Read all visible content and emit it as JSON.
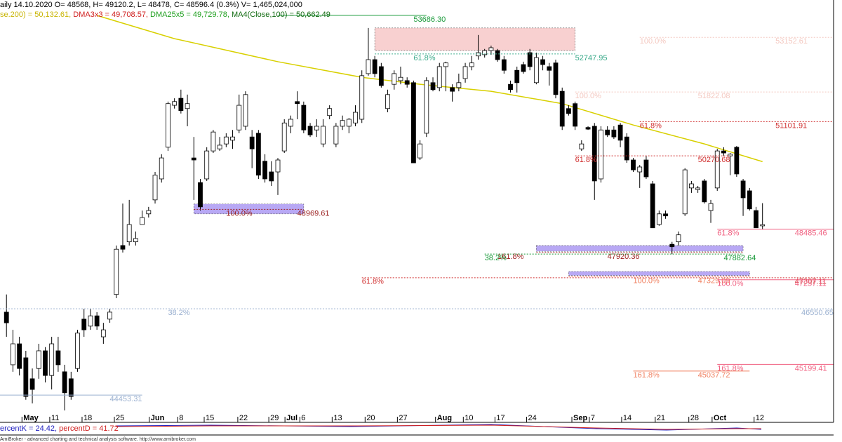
{
  "header": {
    "line1": "aily 14.10.2020 O= 48568, H= 49120.2, L= 48478, C= 48596.4 (0.3%) V= 1,465,024,000",
    "line2": [
      {
        "text": "se.200) = 50,132.61, ",
        "color": "#c8b400"
      },
      {
        "text": "DMA3x3 = 49,708.57, ",
        "color": "#d02020"
      },
      {
        "text": "DMA25x5 = 49,729.78, ",
        "color": "#20a020"
      },
      {
        "text": "MA4(Close,100) = 50,662.49",
        "color": "#106a10"
      }
    ]
  },
  "indicator": [
    {
      "text": "ercentK = 24.42, ",
      "color": "#2020c0"
    },
    {
      "text": "percentD = 41.72",
      "color": "#d02020"
    }
  ],
  "footer": "AmiBroker - advanced charting and technical analysis software. http://www.amibroker.com",
  "chart_data": {
    "type": "candlestick",
    "xlim": [
      -1,
      128
    ],
    "ylim": [
      43824,
      54060
    ],
    "xticks": [
      {
        "value": 2.4,
        "label": "May"
      },
      {
        "value": 6.7,
        "label": "11"
      },
      {
        "value": 11.7,
        "label": "18"
      },
      {
        "value": 16.7,
        "label": "25"
      },
      {
        "value": 22.1,
        "label": "Jun"
      },
      {
        "value": 26.5,
        "label": "8"
      },
      {
        "value": 30.6,
        "label": "15"
      },
      {
        "value": 35.8,
        "label": "22"
      },
      {
        "value": 40.6,
        "label": "29"
      },
      {
        "value": 43.1,
        "label": "Jul"
      },
      {
        "value": 45.4,
        "label": "6"
      },
      {
        "value": 50.4,
        "label": "13"
      },
      {
        "value": 55.5,
        "label": "20"
      },
      {
        "value": 60.5,
        "label": "27"
      },
      {
        "value": 66.4,
        "label": "Aug"
      },
      {
        "value": 70.7,
        "label": "10"
      },
      {
        "value": 75.6,
        "label": "17"
      },
      {
        "value": 80.5,
        "label": "24"
      },
      {
        "value": 87.5,
        "label": "Sep"
      },
      {
        "value": 90.2,
        "label": "7"
      },
      {
        "value": 95.2,
        "label": "14"
      },
      {
        "value": 100.4,
        "label": "21"
      },
      {
        "value": 105.6,
        "label": "28"
      },
      {
        "value": 109.2,
        "label": "Oct"
      },
      {
        "value": 115.7,
        "label": "12"
      }
    ],
    "months": [
      "May",
      "Jun",
      "Jul",
      "Aug",
      "Sep",
      "Oct"
    ],
    "up_color": "#ffffff",
    "down_color": "#000000",
    "ohlc": [
      [
        46470,
        46900,
        45870,
        46210
      ],
      [
        45190,
        46040,
        45020,
        45700
      ],
      [
        45700,
        45870,
        44930,
        45100
      ],
      [
        45360,
        45530,
        44340,
        44420
      ],
      [
        44850,
        45100,
        44250,
        44590
      ],
      [
        45100,
        45700,
        44850,
        45530
      ],
      [
        45530,
        45620,
        44760,
        44930
      ],
      [
        44930,
        45870,
        44590,
        45700
      ],
      [
        45530,
        45870,
        45020,
        45190
      ],
      [
        45020,
        45190,
        44080,
        44510
      ],
      [
        44850,
        45020,
        44340,
        44420
      ],
      [
        45100,
        46040,
        45020,
        45960
      ],
      [
        46300,
        46550,
        45870,
        46040
      ],
      [
        46130,
        46550,
        46040,
        46380
      ],
      [
        46380,
        46470,
        46040,
        46130
      ],
      [
        45870,
        46210,
        45700,
        46040
      ],
      [
        46300,
        46550,
        46210,
        46470
      ],
      [
        46900,
        48090,
        46810,
        48000
      ],
      [
        48090,
        49110,
        47920,
        48000
      ],
      [
        48180,
        49200,
        48090,
        48600
      ],
      [
        48180,
        48430,
        48090,
        48260
      ],
      [
        48600,
        48940,
        48600,
        48770
      ],
      [
        48860,
        49030,
        48770,
        48940
      ],
      [
        49200,
        49880,
        49110,
        49800
      ],
      [
        49710,
        50310,
        49620,
        50220
      ],
      [
        50480,
        51590,
        50390,
        51540
      ],
      [
        51500,
        51670,
        51420,
        51590
      ],
      [
        51670,
        51880,
        51300,
        51370
      ],
      [
        51420,
        51760,
        50990,
        51540
      ],
      [
        50220,
        50730,
        49200,
        50170
      ],
      [
        49620,
        49710,
        48940,
        49030
      ],
      [
        49710,
        50480,
        49660,
        50390
      ],
      [
        50390,
        50900,
        50340,
        50850
      ],
      [
        50440,
        50730,
        50390,
        50530
      ],
      [
        50560,
        50820,
        50480,
        50730
      ],
      [
        50650,
        50900,
        50440,
        50730
      ],
      [
        50900,
        51760,
        50820,
        51500
      ],
      [
        50990,
        51840,
        50900,
        51760
      ],
      [
        50730,
        50900,
        49970,
        50440
      ],
      [
        50820,
        50900,
        49710,
        49800
      ],
      [
        50140,
        50310,
        49620,
        49710
      ],
      [
        49880,
        50140,
        49540,
        49660
      ],
      [
        49880,
        50220,
        49320,
        50170
      ],
      [
        50390,
        51160,
        50340,
        51070
      ],
      [
        50990,
        51250,
        50820,
        51160
      ],
      [
        51590,
        51840,
        51160,
        51540
      ],
      [
        51500,
        51590,
        50820,
        50900
      ],
      [
        50990,
        51070,
        50730,
        50780
      ],
      [
        50900,
        51160,
        50730,
        50990
      ],
      [
        50560,
        51160,
        50480,
        50990
      ],
      [
        51250,
        51500,
        51160,
        51420
      ],
      [
        50560,
        51070,
        50480,
        50990
      ],
      [
        50990,
        51250,
        50900,
        51130
      ],
      [
        50990,
        51190,
        50820,
        51160
      ],
      [
        51070,
        51500,
        50990,
        51330
      ],
      [
        51160,
        52350,
        51070,
        52220
      ],
      [
        52270,
        53380,
        52220,
        52610
      ],
      [
        52610,
        52700,
        52180,
        52270
      ],
      [
        52440,
        52530,
        51930,
        51980
      ],
      [
        51420,
        51880,
        51330,
        51760
      ],
      [
        52010,
        52350,
        51880,
        52270
      ],
      [
        52100,
        52440,
        52010,
        52180
      ],
      [
        52100,
        52180,
        51930,
        52010
      ],
      [
        52050,
        52100,
        50100,
        50100
      ],
      [
        50220,
        50650,
        50170,
        50560
      ],
      [
        50820,
        52180,
        50730,
        52100
      ],
      [
        52050,
        52180,
        51840,
        51880
      ],
      [
        51930,
        52530,
        51840,
        52440
      ],
      [
        52440,
        52560,
        51840,
        52530
      ],
      [
        51930,
        52010,
        51590,
        51840
      ],
      [
        51930,
        52270,
        51840,
        52050
      ],
      [
        52150,
        52530,
        52050,
        52440
      ],
      [
        52440,
        52700,
        52350,
        52530
      ],
      [
        52700,
        53210,
        52610,
        52780
      ],
      [
        52730,
        52870,
        52660,
        52830
      ],
      [
        52830,
        52950,
        52730,
        52900
      ],
      [
        52830,
        52870,
        52560,
        52610
      ],
      [
        52610,
        52700,
        52270,
        52350
      ],
      [
        52010,
        52100,
        51810,
        51880
      ],
      [
        52350,
        52440,
        51810,
        52050
      ],
      [
        52490,
        52560,
        52270,
        52320
      ],
      [
        52780,
        52870,
        52350,
        52440
      ],
      [
        52050,
        52780,
        52010,
        52660
      ],
      [
        52610,
        52700,
        52350,
        52490
      ],
      [
        52440,
        52530,
        51980,
        52350
      ],
      [
        52530,
        52610,
        51670,
        51760
      ],
      [
        51840,
        51930,
        50900,
        50990
      ],
      [
        51420,
        51500,
        51250,
        51300
      ],
      [
        51540,
        51590,
        50900,
        50990
      ],
      [
        50440,
        50650,
        50390,
        50560
      ],
      [
        50960,
        50990,
        50900,
        50920
      ],
      [
        50990,
        51070,
        49200,
        49660
      ],
      [
        49710,
        50990,
        49620,
        50900
      ],
      [
        50900,
        50990,
        50730,
        50780
      ],
      [
        50900,
        50990,
        50680,
        50730
      ],
      [
        51020,
        51070,
        50480,
        50650
      ],
      [
        50730,
        50820,
        50100,
        50170
      ],
      [
        50170,
        50220,
        49880,
        49930
      ],
      [
        49880,
        50050,
        49490,
        50000
      ],
      [
        50170,
        50270,
        49710,
        49760
      ],
      [
        49590,
        49660,
        48520,
        48520
      ],
      [
        48600,
        48940,
        48570,
        48860
      ],
      [
        48860,
        48940,
        48740,
        48810
      ],
      [
        48120,
        48180,
        47880,
        48060
      ],
      [
        48180,
        48430,
        48090,
        48350
      ],
      [
        48860,
        49970,
        48810,
        49930
      ],
      [
        49490,
        49660,
        49370,
        49590
      ],
      [
        49450,
        49540,
        49370,
        49490
      ],
      [
        49660,
        49710,
        49110,
        49150
      ],
      [
        48940,
        49200,
        48640,
        49110
      ],
      [
        49490,
        50440,
        49420,
        50390
      ],
      [
        50390,
        50480,
        50270,
        50340
      ],
      [
        50270,
        50340,
        49800,
        50310
      ],
      [
        50480,
        50510,
        49760,
        49830
      ],
      [
        49660,
        49710,
        48810,
        49250
      ],
      [
        49420,
        49490,
        48940,
        48980
      ],
      [
        48940,
        49030,
        48520,
        48520
      ],
      [
        48568,
        49120.2,
        48478,
        48596.4
      ]
    ],
    "ma": {
      "color": "#d8d000",
      "x": [
        14,
        26,
        42,
        55,
        64,
        75,
        86,
        97,
        108,
        117
      ],
      "values": [
        53685,
        53120,
        52560,
        52180,
        52010,
        51840,
        51540,
        51020,
        50560,
        50130
      ]
    },
    "zones": [
      {
        "from": 57,
        "to": 88,
        "low": 52830,
        "high": 53380,
        "color": "#f8d0d0"
      },
      {
        "from": 29,
        "to": 46,
        "low": 48860,
        "high": 49100,
        "color": "#b8a8f4"
      },
      {
        "from": 82,
        "to": 114,
        "low": 47950,
        "high": 48090,
        "color": "#b8a8f4"
      },
      {
        "from": 87,
        "to": 115,
        "low": 47360,
        "high": 47460,
        "color": "#b8a8f4"
      }
    ],
    "levels": [
      {
        "value": 53686.3,
        "label": "53686.30",
        "color": "#1a9a3a",
        "style": "solid",
        "from": 42,
        "to": 65,
        "label_at": 63
      },
      {
        "value": 52747.95,
        "label": "52747.95",
        "color": "#3aaa8a",
        "style": "dotted",
        "from": 57,
        "to": 88,
        "pct": "61.8%",
        "pct_at": 63,
        "label_at": 88
      },
      {
        "value": 53152.61,
        "label": "53152.61",
        "color": "#f4c8c0",
        "style": "dotted",
        "from": 98,
        "to": 128,
        "pct": "100.0%",
        "pct_at": 98,
        "label_at": 119
      },
      {
        "value": 51822.08,
        "label": "51822.08",
        "color": "#f4c8c0",
        "style": "dotted",
        "from": 88,
        "to": 128,
        "pct": "100.0%",
        "pct_at": 88,
        "label_at": 107
      },
      {
        "value": 51101.91,
        "label": "51101.91",
        "color": "#d03030",
        "style": "dotted",
        "from": 98,
        "to": 128,
        "pct": "61.8%",
        "pct_at": 98,
        "label_at": 119
      },
      {
        "value": 50270.68,
        "label": "50270.68",
        "color": "#d03030",
        "style": "dotted",
        "from": 88,
        "to": 112,
        "pct": "61.8%",
        "pct_at": 88,
        "label_at": 107
      },
      {
        "value": 48969.61,
        "label": "48969.61",
        "color": "#9a2020",
        "style": "dotted",
        "from": 29,
        "to": 46,
        "pct": "100.0%",
        "pct_at": 34,
        "label_at": 45
      },
      {
        "value": 48485.46,
        "label": "48485.46",
        "color": "#f06080",
        "style": "solid",
        "from": 110,
        "to": 128,
        "pct": "61.8%",
        "pct_at": 110,
        "label_at": 122
      },
      {
        "value": 47920.36,
        "label": "47920.36",
        "color": "#a02020",
        "style": "dotted",
        "from": 82,
        "to": 114,
        "pct": "161.8%",
        "pct_at": 76,
        "label_at": 93
      },
      {
        "value": 47882.64,
        "label": "47882.64",
        "color": "#1a9a3a",
        "style": "dotted",
        "from": 74,
        "to": 114,
        "pct": "38.2%",
        "pct_at": 74,
        "label_at": 111
      },
      {
        "value": 47329.09,
        "label": "47329.09",
        "color": "#f08060",
        "style": "dotted",
        "from": 87,
        "to": 115,
        "pct": "100.0%",
        "pct_at": 97,
        "label_at": 107
      },
      {
        "value": 47307.11,
        "label": "47307.11",
        "color": "#d03030",
        "style": "dotted",
        "from": 55,
        "to": 128,
        "pct": "61.8%",
        "pct_at": 55,
        "label_at": 122
      },
      {
        "value": 47257.11,
        "label": "47257.11",
        "color": "#f06080",
        "style": "solid",
        "from": 110,
        "to": 128,
        "pct": "100.0%",
        "pct_at": 110,
        "label_at": 122
      },
      {
        "value": 46550.65,
        "label": "46550.65",
        "color": "#9ab0d0",
        "style": "dotted",
        "from": -1,
        "to": 128,
        "pct": "38.2%",
        "pct_at": 25,
        "label_at": 123
      },
      {
        "value": 45199.41,
        "label": "45199.41",
        "color": "#f06080",
        "style": "solid",
        "from": 110,
        "to": 128,
        "pct": "161.8%",
        "pct_at": 110,
        "label_at": 122
      },
      {
        "value": 45037.72,
        "label": "45037.72",
        "color": "#f08060",
        "style": "solid",
        "from": 97,
        "to": 115,
        "pct": "161.8%",
        "pct_at": 97,
        "label_at": 107
      },
      {
        "value": 44453.31,
        "label": "44453.31",
        "color": "#9ab0d0",
        "style": "solid",
        "from": -1,
        "to": 21,
        "label_at": 16
      }
    ]
  }
}
